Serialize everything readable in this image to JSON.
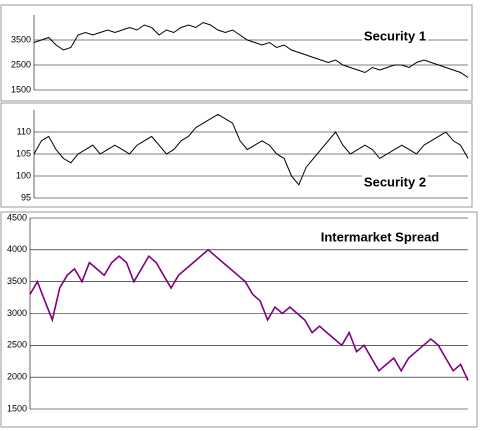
{
  "chart_data": [
    {
      "type": "line",
      "title": "Security 1",
      "color": "#000000",
      "grid": true,
      "ylim": [
        1500,
        4500
      ],
      "yticks": [
        1500,
        2500,
        3500
      ],
      "values": [
        3400,
        3500,
        3600,
        3300,
        3100,
        3200,
        3700,
        3800,
        3700,
        3800,
        3900,
        3800,
        3900,
        4000,
        3900,
        4100,
        4000,
        3700,
        3900,
        3800,
        4000,
        4100,
        4000,
        4200,
        4100,
        3900,
        3800,
        3900,
        3700,
        3500,
        3400,
        3300,
        3400,
        3200,
        3300,
        3100,
        3000,
        2900,
        2800,
        2700,
        2600,
        2700,
        2500,
        2400,
        2300,
        2200,
        2400,
        2300,
        2400,
        2500,
        2500,
        2400,
        2600,
        2700,
        2600,
        2500,
        2400,
        2300,
        2200,
        2000
      ]
    },
    {
      "type": "line",
      "title": "Security 2",
      "color": "#000000",
      "grid": true,
      "ylim": [
        95,
        115
      ],
      "yticks": [
        95,
        100,
        105,
        110
      ],
      "values": [
        105,
        108,
        109,
        106,
        104,
        103,
        105,
        106,
        107,
        105,
        106,
        107,
        106,
        105,
        107,
        108,
        109,
        107,
        105,
        106,
        108,
        109,
        111,
        112,
        113,
        114,
        113,
        112,
        108,
        106,
        107,
        108,
        107,
        105,
        104,
        100,
        98,
        102,
        104,
        106,
        108,
        110,
        107,
        105,
        106,
        107,
        106,
        104,
        105,
        106,
        107,
        106,
        105,
        107,
        108,
        109,
        110,
        108,
        107,
        104
      ]
    },
    {
      "type": "line",
      "title": "Intermarket Spread",
      "color": "#800080",
      "grid": true,
      "ylim": [
        1500,
        4500
      ],
      "yticks": [
        1500,
        2000,
        2500,
        3000,
        3500,
        4000,
        4500
      ],
      "values": [
        3300,
        3500,
        3200,
        2900,
        3400,
        3600,
        3700,
        3500,
        3800,
        3700,
        3600,
        3800,
        3900,
        3800,
        3500,
        3700,
        3900,
        3800,
        3600,
        3400,
        3600,
        3700,
        3800,
        3900,
        4000,
        3900,
        3800,
        3700,
        3600,
        3500,
        3300,
        3200,
        2900,
        3100,
        3000,
        3100,
        3000,
        2900,
        2700,
        2800,
        2700,
        2600,
        2500,
        2700,
        2400,
        2500,
        2300,
        2100,
        2200,
        2300,
        2100,
        2300,
        2400,
        2500,
        2600,
        2500,
        2300,
        2100,
        2200,
        1950
      ]
    }
  ]
}
